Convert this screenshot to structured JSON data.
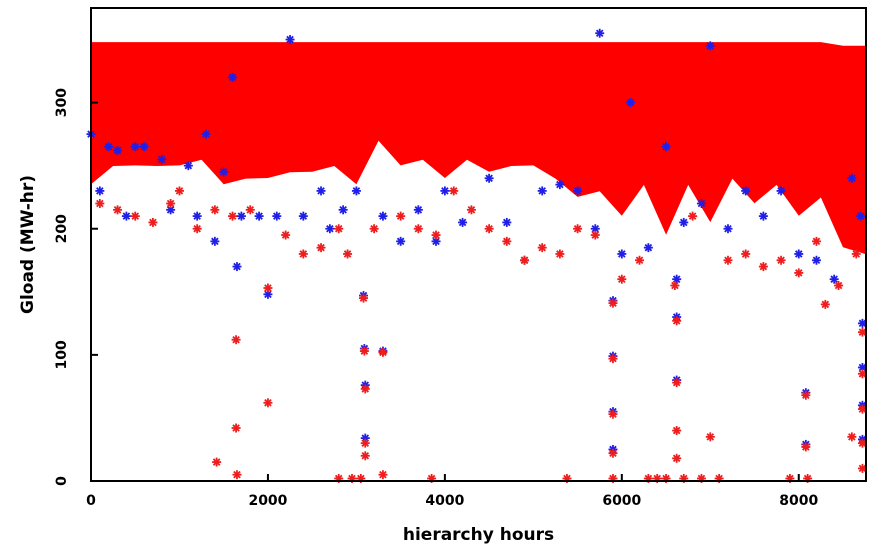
{
  "chart_data": {
    "type": "scatter",
    "title": "",
    "xlabel": "hierarchy hours",
    "ylabel": "Gload (MW-hr)",
    "xlim": [
      0,
      8760
    ],
    "ylim": [
      0,
      375
    ],
    "x_ticks": [
      0,
      2000,
      4000,
      6000,
      8000
    ],
    "y_ticks": [
      0,
      100,
      200,
      300
    ],
    "x_tick_labels": [
      "0",
      "2000",
      "4000",
      "6000",
      "8000"
    ],
    "y_tick_labels": [
      "0",
      "100",
      "200",
      "300"
    ],
    "grid": false,
    "marker": "asterisk",
    "series": [
      {
        "color": "#1f1fe6",
        "points": [
          [
            0,
            275
          ],
          [
            100,
            230
          ],
          [
            200,
            265
          ],
          [
            300,
            262
          ],
          [
            400,
            210
          ],
          [
            500,
            265
          ],
          [
            600,
            265
          ],
          [
            800,
            255
          ],
          [
            900,
            215
          ],
          [
            1100,
            250
          ],
          [
            1200,
            210
          ],
          [
            1300,
            275
          ],
          [
            1400,
            190
          ],
          [
            1500,
            245
          ],
          [
            1600,
            320
          ],
          [
            1650,
            170
          ],
          [
            1700,
            210
          ],
          [
            1900,
            210
          ],
          [
            2000,
            148
          ],
          [
            2100,
            210
          ],
          [
            2250,
            350
          ],
          [
            2400,
            210
          ],
          [
            2600,
            230
          ],
          [
            2700,
            200
          ],
          [
            2850,
            215
          ],
          [
            3000,
            230
          ],
          [
            3080,
            147
          ],
          [
            3090,
            105
          ],
          [
            3100,
            76
          ],
          [
            3100,
            34
          ],
          [
            3300,
            103
          ],
          [
            3300,
            210
          ],
          [
            3500,
            190
          ],
          [
            3700,
            215
          ],
          [
            3900,
            190
          ],
          [
            4000,
            230
          ],
          [
            4200,
            205
          ],
          [
            4500,
            240
          ],
          [
            4700,
            205
          ],
          [
            4900,
            175
          ],
          [
            5100,
            230
          ],
          [
            5300,
            235
          ],
          [
            5500,
            230
          ],
          [
            5700,
            200
          ],
          [
            5750,
            355
          ],
          [
            5900,
            143
          ],
          [
            5900,
            99
          ],
          [
            5900,
            55
          ],
          [
            5900,
            25
          ],
          [
            6000,
            180
          ],
          [
            6100,
            300
          ],
          [
            6300,
            185
          ],
          [
            6500,
            265
          ],
          [
            6620,
            160
          ],
          [
            6620,
            130
          ],
          [
            6620,
            80
          ],
          [
            6700,
            205
          ],
          [
            6900,
            220
          ],
          [
            7000,
            345
          ],
          [
            7200,
            200
          ],
          [
            7400,
            230
          ],
          [
            7600,
            210
          ],
          [
            7800,
            230
          ],
          [
            8000,
            180
          ],
          [
            8080,
            70
          ],
          [
            8080,
            29
          ],
          [
            8200,
            175
          ],
          [
            8400,
            160
          ],
          [
            8600,
            240
          ],
          [
            8700,
            210
          ],
          [
            8720,
            125
          ],
          [
            8720,
            90
          ],
          [
            8720,
            60
          ],
          [
            8720,
            33
          ]
        ]
      },
      {
        "color": "#ee1e1e",
        "points": [
          [
            100,
            220
          ],
          [
            300,
            215
          ],
          [
            500,
            210
          ],
          [
            700,
            205
          ],
          [
            900,
            220
          ],
          [
            1000,
            230
          ],
          [
            1200,
            200
          ],
          [
            1400,
            215
          ],
          [
            1420,
            15
          ],
          [
            1600,
            210
          ],
          [
            1640,
            112
          ],
          [
            1640,
            42
          ],
          [
            1650,
            5
          ],
          [
            1800,
            215
          ],
          [
            2000,
            153
          ],
          [
            2000,
            62
          ],
          [
            2200,
            195
          ],
          [
            2400,
            180
          ],
          [
            2600,
            185
          ],
          [
            2800,
            200
          ],
          [
            2800,
            2
          ],
          [
            2900,
            180
          ],
          [
            2950,
            2
          ],
          [
            3050,
            2
          ],
          [
            3080,
            145
          ],
          [
            3090,
            103
          ],
          [
            3100,
            73
          ],
          [
            3100,
            30
          ],
          [
            3100,
            20
          ],
          [
            3200,
            200
          ],
          [
            3300,
            102
          ],
          [
            3300,
            5
          ],
          [
            3500,
            210
          ],
          [
            3700,
            200
          ],
          [
            3850,
            2
          ],
          [
            3900,
            195
          ],
          [
            4100,
            230
          ],
          [
            4300,
            215
          ],
          [
            4500,
            200
          ],
          [
            4700,
            190
          ],
          [
            4900,
            175
          ],
          [
            5100,
            185
          ],
          [
            5300,
            180
          ],
          [
            5380,
            2
          ],
          [
            5500,
            200
          ],
          [
            5700,
            195
          ],
          [
            5900,
            141
          ],
          [
            5900,
            97
          ],
          [
            5900,
            53
          ],
          [
            5900,
            22
          ],
          [
            5900,
            2
          ],
          [
            6000,
            160
          ],
          [
            6200,
            175
          ],
          [
            6300,
            2
          ],
          [
            6400,
            2
          ],
          [
            6500,
            2
          ],
          [
            6600,
            155
          ],
          [
            6620,
            127
          ],
          [
            6620,
            78
          ],
          [
            6620,
            40
          ],
          [
            6620,
            18
          ],
          [
            6700,
            2
          ],
          [
            6800,
            210
          ],
          [
            6900,
            2
          ],
          [
            7000,
            35
          ],
          [
            7100,
            2
          ],
          [
            7200,
            175
          ],
          [
            7400,
            180
          ],
          [
            7600,
            170
          ],
          [
            7800,
            175
          ],
          [
            7900,
            2
          ],
          [
            8000,
            165
          ],
          [
            8080,
            68
          ],
          [
            8080,
            27
          ],
          [
            8100,
            2
          ],
          [
            8200,
            190
          ],
          [
            8300,
            140
          ],
          [
            8450,
            155
          ],
          [
            8600,
            35
          ],
          [
            8650,
            180
          ],
          [
            8720,
            118
          ],
          [
            8720,
            85
          ],
          [
            8720,
            57
          ],
          [
            8720,
            30
          ],
          [
            8720,
            10
          ]
        ]
      }
    ],
    "dense_band": {
      "color": "#ff0000",
      "x": [
        0,
        250,
        500,
        750,
        1000,
        1250,
        1500,
        1750,
        2000,
        2250,
        2500,
        2750,
        3000,
        3250,
        3500,
        3750,
        4000,
        4250,
        4500,
        4750,
        5000,
        5250,
        5500,
        5750,
        6000,
        6250,
        6500,
        6750,
        7000,
        7250,
        7500,
        7750,
        8000,
        8250,
        8500,
        8760
      ],
      "upper": [
        348,
        348,
        348,
        348,
        348,
        348,
        348,
        348,
        348,
        348,
        348,
        348,
        348,
        348,
        348,
        348,
        348,
        348,
        348,
        348,
        348,
        348,
        348,
        348,
        348,
        348,
        348,
        348,
        348,
        348,
        348,
        348,
        348,
        348,
        345,
        345
      ],
      "lower": [
        240,
        245,
        255,
        245,
        255,
        250,
        240,
        235,
        245,
        240,
        250,
        245,
        240,
        265,
        255,
        250,
        245,
        250,
        250,
        245,
        255,
        235,
        230,
        225,
        215,
        230,
        200,
        230,
        210,
        235,
        225,
        230,
        215,
        220,
        190,
        175
      ]
    }
  }
}
